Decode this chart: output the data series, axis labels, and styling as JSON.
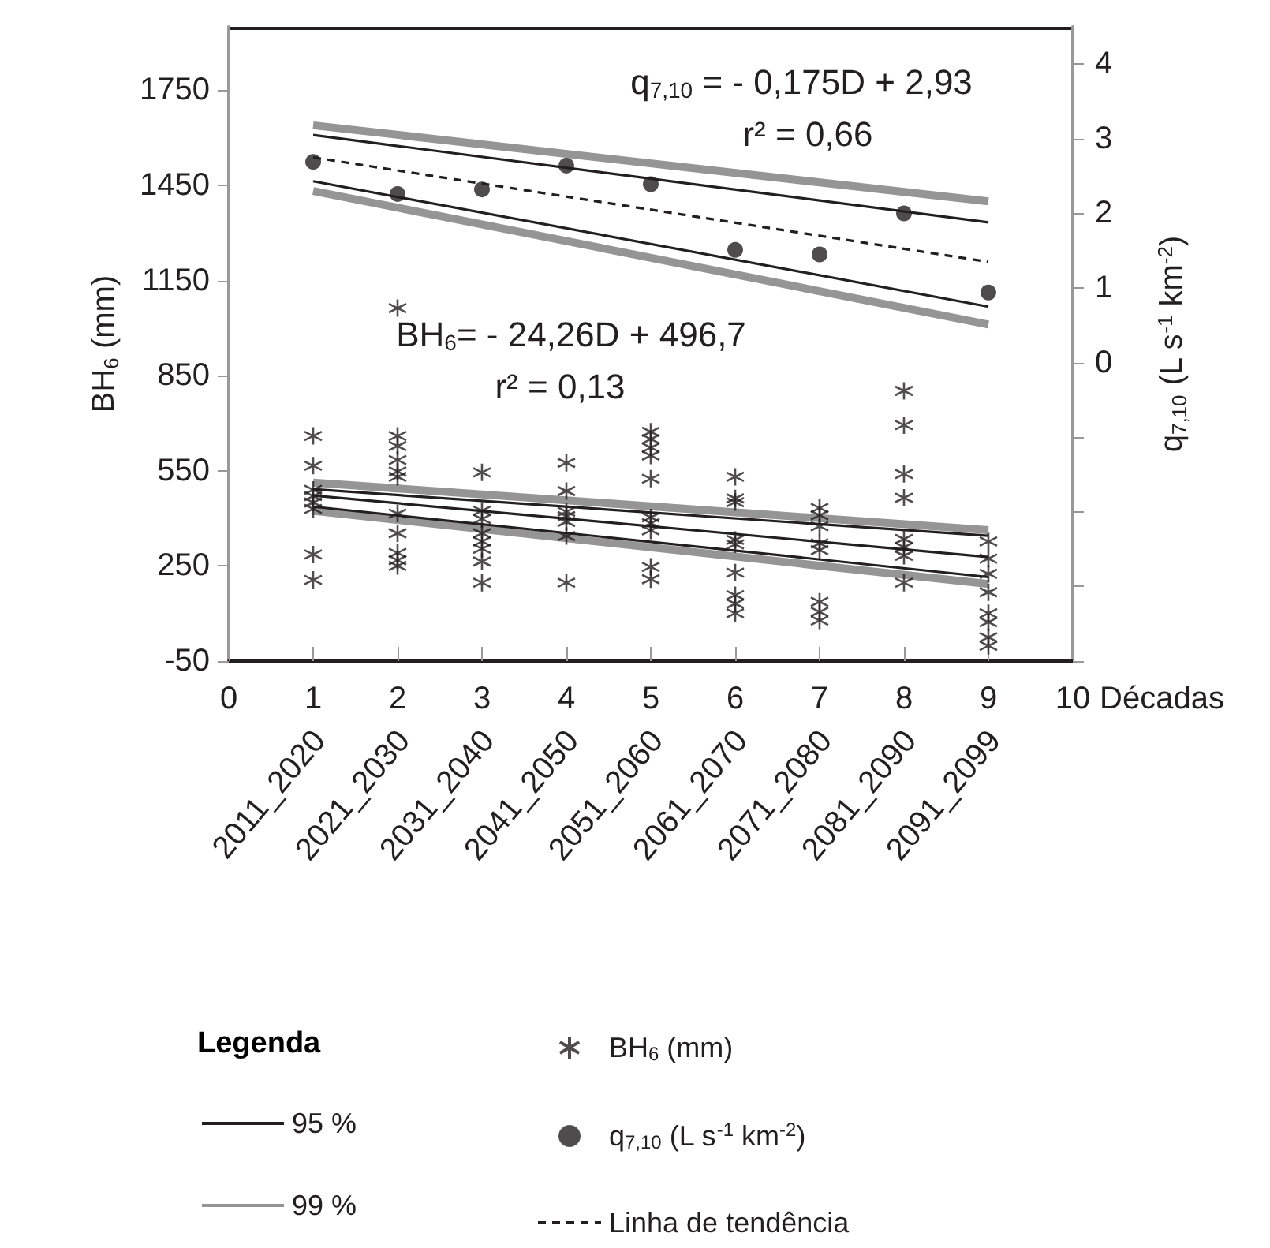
{
  "chart_data": {
    "type": "scatter",
    "ylabel": "BH$_{6}$ (mm)",
    "y2label": "q$_{7,10}$ (L s$^{-1}$ km$^{-2}$)",
    "xlabel": "Décadas",
    "legend_title": "Legenda",
    "xlim": [
      0,
      10
    ],
    "xticks": [
      0,
      1,
      2,
      3,
      4,
      5,
      6,
      7,
      8,
      9,
      10
    ],
    "ylim": [
      -50,
      1950
    ],
    "yticks": [
      -50,
      250,
      550,
      850,
      1150,
      1450,
      1750
    ],
    "y2lim": [
      -4,
      4.5
    ],
    "y2ticks": [
      {
        "value": -4,
        "label": null
      },
      {
        "value": -3,
        "label": null
      },
      {
        "value": -2,
        "label": null
      },
      {
        "value": -1,
        "label": null
      },
      0,
      1,
      2,
      3,
      4
    ],
    "grid": false,
    "legend": "bottom",
    "annotations": [
      "q$_{7,10}$ = - 0,175D + 2,93",
      "r² = 0,66",
      "BH$_{6}$= - 24,26D + 496,7",
      "r² = 0,13",
      "2011_2020",
      "2021_2030",
      "2031_2040",
      "2041_2050",
      "2051_2060",
      "2061_2070",
      "2071_2080",
      "2081_2090",
      "2091_2099"
    ],
    "series": [
      {
        "name": "BH$_{6}$ (mm)",
        "marker": "cross",
        "color": "#231f20",
        "axis": "y",
        "x": [
          1,
          1,
          1,
          1,
          1,
          1,
          1,
          1,
          2,
          2,
          2,
          2,
          2,
          2,
          2,
          2,
          2,
          2,
          2,
          3,
          3,
          3,
          3,
          3,
          3,
          3,
          3,
          4,
          4,
          4,
          4,
          4,
          4,
          4,
          5,
          5,
          5,
          5,
          5,
          5,
          5,
          5,
          5,
          5,
          6,
          6,
          6,
          6,
          6,
          6,
          6,
          6,
          6,
          7,
          7,
          7,
          7,
          7,
          7,
          7,
          7,
          8,
          8,
          8,
          8,
          8,
          8,
          8,
          8,
          9,
          9,
          9,
          9,
          9,
          9,
          9,
          9
        ],
        "values": [
          660,
          566,
          490,
          470,
          450,
          430,
          286,
          206,
          1063,
          660,
          628,
          584,
          548,
          531,
          415,
          353,
          291,
          268,
          250,
          545,
          424,
          398,
          353,
          327,
          304,
          264,
          197,
          575,
          486,
          421,
          407,
          389,
          344,
          197,
          673,
          650,
          623,
          598,
          525,
          403,
          385,
          362,
          247,
          208,
          531,
          463,
          451,
          332,
          318,
          229,
          158,
          131,
          101,
          433,
          410,
          375,
          321,
          300,
          137,
          105,
          78,
          802,
          694,
          540,
          465,
          335,
          309,
          282,
          197,
          327,
          273,
          225,
          167,
          101,
          73,
          25,
          -2
        ]
      },
      {
        "name": "q$_{7,10}$ (L s$^{-1}$ km$^{-2}$)",
        "marker": "circle",
        "color": "#231f20",
        "axis": "y2",
        "x": [
          1,
          2,
          3,
          4,
          5,
          6,
          7,
          8,
          9
        ],
        "values": [
          2.69,
          2.26,
          2.32,
          2.64,
          2.39,
          1.51,
          1.45,
          2.0,
          0.94
        ]
      },
      {
        "name": "Linha de tendência",
        "type": "line",
        "line_style": "dashed",
        "marker": "none",
        "color": "#231f20",
        "axis": "y2",
        "x": [
          1,
          9
        ],
        "values": [
          2.75,
          1.35
        ]
      },
      {
        "type": "line",
        "line_style": "solid",
        "marker": "none",
        "color": "#231f20",
        "axis": "y",
        "x": [
          1,
          9
        ],
        "values": [
          472,
          278
        ]
      },
      {
        "name": "95 %",
        "type": "line",
        "line_style": "solid",
        "marker": "none",
        "color": "#231f20",
        "axis": "y2",
        "x": [
          1,
          9
        ],
        "values": [
          3.05,
          1.88
        ]
      },
      {
        "type": "line",
        "line_style": "solid",
        "marker": "none",
        "color": "#231f20",
        "axis": "y2",
        "x": [
          1,
          9
        ],
        "values": [
          2.43,
          0.75
        ]
      },
      {
        "type": "line",
        "line_style": "solid",
        "marker": "none",
        "color": "#231f20",
        "axis": "y",
        "x": [
          1,
          9
        ],
        "values": [
          492,
          345
        ]
      },
      {
        "type": "line",
        "line_style": "solid",
        "marker": "none",
        "color": "#231f20",
        "axis": "y",
        "x": [
          1,
          9
        ],
        "values": [
          437,
          215
        ]
      },
      {
        "name": "99 %",
        "type": "line",
        "line_style": "solid",
        "marker": "none",
        "color": "#959595",
        "axis": "y2",
        "x": [
          1,
          9
        ],
        "values": [
          3.18,
          2.16
        ]
      },
      {
        "type": "line",
        "line_style": "solid",
        "marker": "none",
        "color": "#959595",
        "axis": "y2",
        "x": [
          1,
          9
        ],
        "values": [
          2.3,
          0.51
        ]
      },
      {
        "type": "line",
        "line_style": "solid",
        "marker": "none",
        "color": "#959595",
        "axis": "y",
        "x": [
          1,
          9
        ],
        "values": [
          513,
          363
        ]
      },
      {
        "type": "line",
        "line_style": "solid",
        "marker": "none",
        "color": "#959595",
        "axis": "y",
        "x": [
          1,
          9
        ],
        "values": [
          424,
          193
        ]
      }
    ]
  }
}
